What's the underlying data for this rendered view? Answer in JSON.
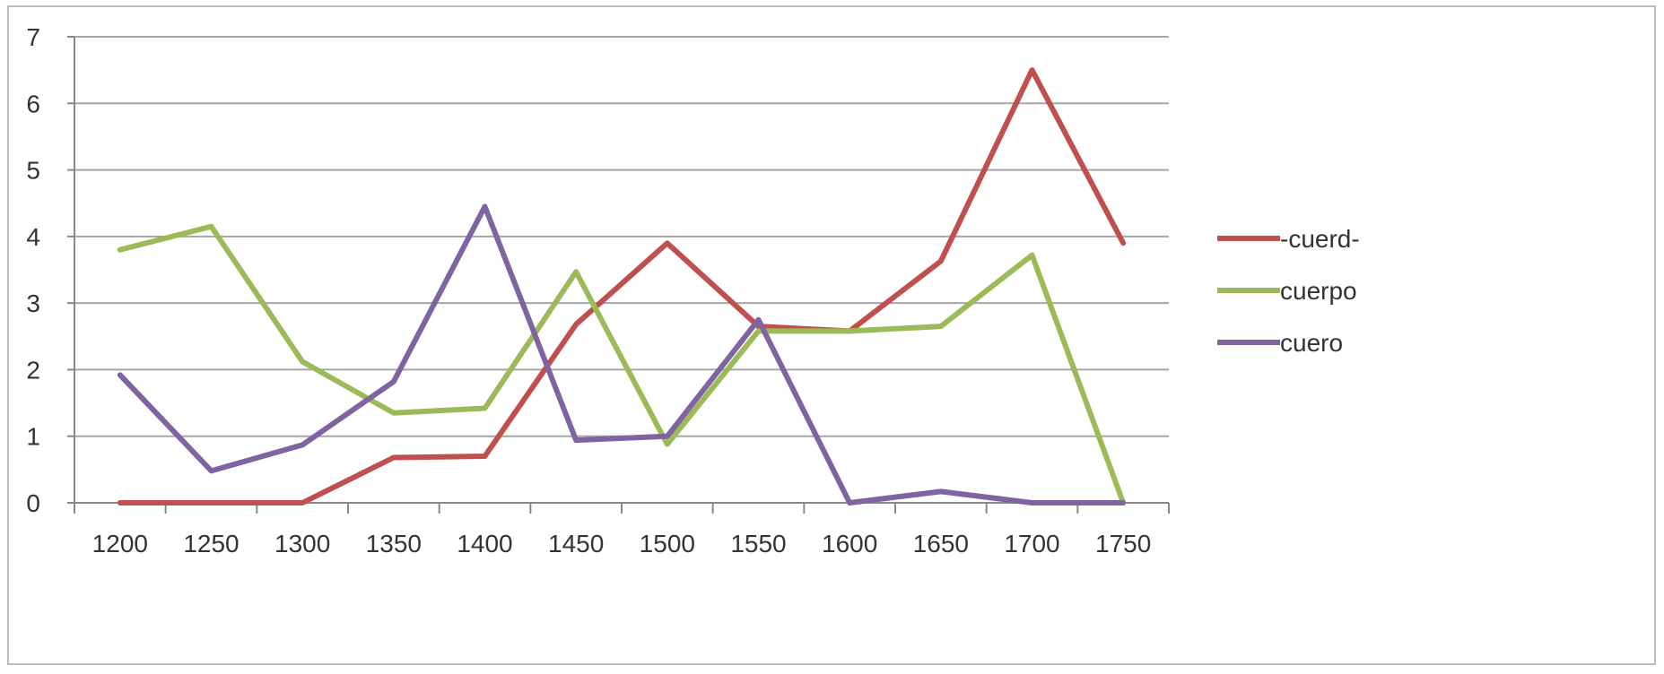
{
  "chart_data": {
    "type": "line",
    "categories": [
      "1200",
      "1250",
      "1300",
      "1350",
      "1400",
      "1450",
      "1500",
      "1550",
      "1600",
      "1650",
      "1700",
      "1750"
    ],
    "series": [
      {
        "name": "-cuerd-",
        "color": "#c0504d",
        "values": [
          0,
          0,
          0,
          0.68,
          0.7,
          2.68,
          3.9,
          2.65,
          2.58,
          3.63,
          6.5,
          3.9
        ]
      },
      {
        "name": "cuerpo",
        "color": "#9bbb59",
        "values": [
          3.8,
          4.15,
          2.12,
          1.35,
          1.42,
          3.47,
          0.88,
          2.58,
          2.58,
          2.65,
          3.72,
          0
        ]
      },
      {
        "name": "cuero",
        "color": "#8064a2",
        "values": [
          1.92,
          0.48,
          0.87,
          1.82,
          4.45,
          0.94,
          1.0,
          2.75,
          0,
          0.17,
          0,
          0
        ]
      }
    ],
    "yticks": [
      "0",
      "1",
      "2",
      "3",
      "4",
      "5",
      "6",
      "7"
    ],
    "ylim": [
      0,
      7
    ],
    "grid": true,
    "legend_position": "right",
    "gridline_color": "#a6a6a6"
  }
}
